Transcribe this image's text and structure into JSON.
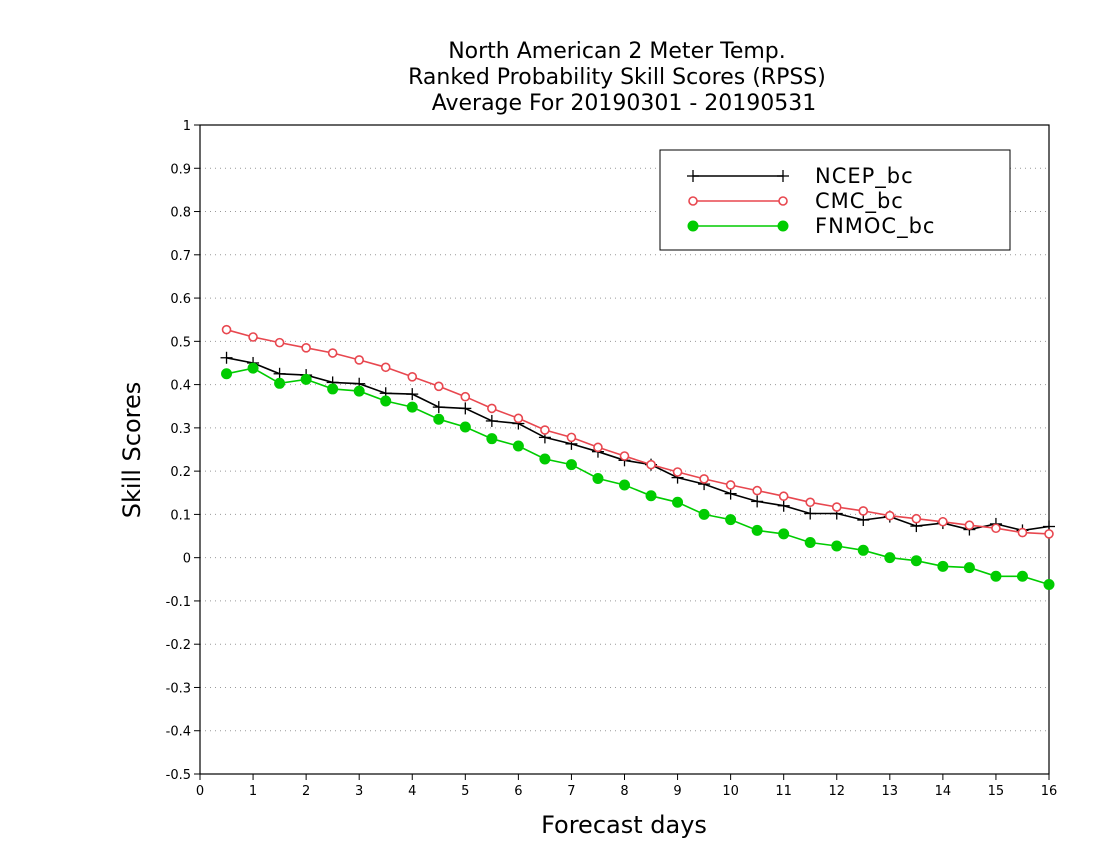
{
  "chart_data": {
    "type": "line",
    "title_lines": [
      "North American 2 Meter Temp.",
      "Ranked Probability Skill Scores (RPSS)",
      "Average For 20190301 - 20190531"
    ],
    "xlabel": "Forecast days",
    "ylabel": "Skill Scores",
    "xlim": [
      0,
      16
    ],
    "ylim": [
      -0.5,
      1
    ],
    "x_ticks": [
      0,
      1,
      2,
      3,
      4,
      5,
      6,
      7,
      8,
      9,
      10,
      11,
      12,
      13,
      14,
      15,
      16
    ],
    "x_tick_labels": [
      "0",
      "1",
      "2",
      "3",
      "4",
      "5",
      "6",
      "7",
      "8",
      "9",
      "10",
      "11",
      "12",
      "13",
      "14",
      "15",
      "16"
    ],
    "y_ticks": [
      -0.5,
      -0.4,
      -0.3,
      -0.2,
      -0.1,
      0,
      0.1,
      0.2,
      0.3,
      0.4,
      0.5,
      0.6,
      0.7,
      0.8,
      0.9,
      1
    ],
    "y_tick_labels": [
      "-0.5",
      "-0.4",
      "-0.3",
      "-0.2",
      "-0.1",
      "0",
      "0.1",
      "0.2",
      "0.3",
      "0.4",
      "0.5",
      "0.6",
      "0.7",
      "0.8",
      "0.9",
      "1"
    ],
    "grid": "horizontal dotted",
    "legend_position": "top-right",
    "x": [
      0.5,
      1,
      1.5,
      2,
      2.5,
      3,
      3.5,
      4,
      4.5,
      5,
      5.5,
      6,
      6.5,
      7,
      7.5,
      8,
      8.5,
      9,
      9.5,
      10,
      10.5,
      11,
      11.5,
      12,
      12.5,
      13,
      13.5,
      14,
      14.5,
      15,
      15.5,
      16
    ],
    "series": [
      {
        "name": "NCEP_bc",
        "color": "#000000",
        "marker": "plus",
        "values": [
          0.462,
          0.45,
          0.425,
          0.422,
          0.405,
          0.402,
          0.38,
          0.378,
          0.348,
          0.345,
          0.316,
          0.31,
          0.278,
          0.263,
          0.245,
          0.225,
          0.215,
          0.185,
          0.17,
          0.148,
          0.13,
          0.12,
          0.102,
          0.102,
          0.087,
          0.095,
          0.073,
          0.08,
          0.065,
          0.078,
          0.063,
          0.072
        ]
      },
      {
        "name": "CMC_bc",
        "color": "#e8474f",
        "marker": "open-circle",
        "values": [
          0.527,
          0.51,
          0.497,
          0.485,
          0.473,
          0.457,
          0.44,
          0.418,
          0.396,
          0.372,
          0.345,
          0.322,
          0.295,
          0.278,
          0.255,
          0.235,
          0.215,
          0.198,
          0.182,
          0.168,
          0.155,
          0.142,
          0.128,
          0.117,
          0.108,
          0.097,
          0.09,
          0.083,
          0.075,
          0.068,
          0.058,
          0.055
        ]
      },
      {
        "name": "FNMOC_bc",
        "color": "#00cc00",
        "marker": "filled-circle",
        "values": [
          0.425,
          0.438,
          0.403,
          0.412,
          0.39,
          0.385,
          0.362,
          0.348,
          0.32,
          0.302,
          0.275,
          0.258,
          0.228,
          0.215,
          0.183,
          0.168,
          0.143,
          0.128,
          0.1,
          0.088,
          0.063,
          0.055,
          0.035,
          0.027,
          0.017,
          0.0,
          -0.007,
          -0.02,
          -0.023,
          -0.043,
          -0.043,
          -0.062
        ]
      }
    ]
  }
}
